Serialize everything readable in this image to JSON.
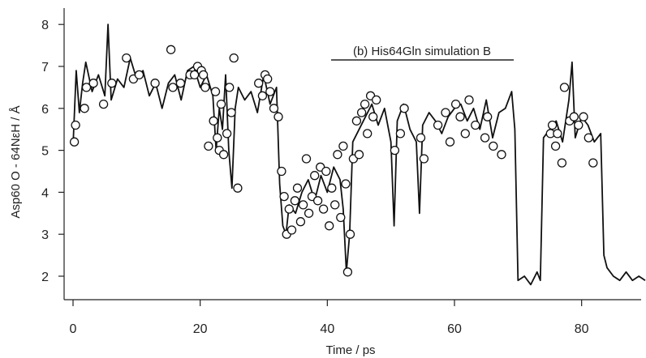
{
  "chart_data": {
    "type": "line",
    "title": "",
    "annotation": "(b) His64Gln simulation B",
    "xlabel": "Time / ps",
    "ylabel": "Asp60 O - 64NεH / Å",
    "xlim": [
      0,
      90
    ],
    "ylim": [
      1.6,
      8.25
    ],
    "xticks": [
      0,
      20,
      40,
      60,
      80
    ],
    "yticks": [
      2,
      3,
      4,
      5,
      6,
      7,
      8
    ],
    "grid": false,
    "legend": "none",
    "series": [
      {
        "style": "line",
        "x": [
          0,
          0.5,
          1,
          1.5,
          2,
          3,
          4,
          5,
          5.5,
          6,
          7,
          8,
          9,
          10,
          11,
          12,
          13,
          14,
          15,
          16,
          17,
          18,
          19,
          20,
          21,
          22,
          22.5,
          23,
          23.5,
          24,
          24.5,
          25,
          25.5,
          26,
          27,
          28,
          29,
          30,
          31,
          32,
          32.5,
          33,
          33.5,
          34,
          35,
          36,
          37,
          38,
          39,
          40,
          41,
          42,
          42.5,
          43,
          43.5,
          44,
          45,
          46,
          47,
          48,
          49,
          50,
          50.5,
          51,
          52,
          53,
          54,
          54.5,
          55,
          56,
          57,
          58,
          59,
          60,
          61,
          62,
          63,
          64,
          65,
          66,
          67,
          68,
          69,
          69.5,
          70,
          71,
          72,
          73,
          73.5,
          74,
          75,
          76,
          77,
          78,
          78.5,
          79,
          80,
          81,
          82,
          83,
          83.5,
          84,
          85,
          86,
          87,
          88,
          89,
          90
        ],
        "y": [
          5.1,
          6.9,
          5.9,
          6.6,
          7.1,
          6.4,
          6.8,
          6.3,
          8.0,
          6.2,
          6.7,
          6.5,
          7.2,
          6.7,
          6.9,
          6.3,
          6.6,
          6.0,
          6.6,
          6.8,
          6.2,
          6.9,
          7.0,
          6.5,
          6.8,
          6.3,
          5.0,
          6.0,
          5.5,
          6.8,
          5.0,
          4.1,
          6.0,
          6.5,
          6.2,
          6.4,
          5.9,
          6.8,
          6.1,
          6.5,
          4.2,
          3.2,
          3.0,
          3.7,
          3.5,
          4.0,
          4.3,
          3.8,
          4.4,
          4.0,
          4.6,
          4.3,
          3.6,
          2.1,
          3.0,
          5.2,
          5.5,
          5.8,
          6.1,
          5.6,
          6.0,
          5.2,
          3.2,
          5.7,
          6.1,
          5.5,
          5.2,
          3.5,
          5.6,
          5.9,
          5.7,
          5.4,
          5.8,
          6.0,
          6.1,
          5.7,
          6.0,
          5.5,
          6.2,
          5.3,
          5.9,
          6.0,
          6.4,
          5.5,
          1.9,
          2.0,
          1.8,
          2.1,
          1.9,
          5.3,
          5.5,
          5.7,
          5.2,
          6.2,
          7.1,
          5.3,
          5.8,
          5.6,
          5.2,
          5.4,
          2.5,
          2.2,
          2.0,
          1.9,
          2.1,
          1.9,
          2.0,
          1.9
        ]
      },
      {
        "style": "markers",
        "x": [
          0.2,
          0.4,
          1.8,
          2.1,
          3.2,
          4.8,
          6.1,
          8.4,
          9.5,
          10.4,
          12.9,
          15.4,
          15.7,
          16.9,
          18.4,
          19.1,
          19.6,
          20.2,
          20.5,
          20.8,
          21.3,
          22.1,
          22.4,
          22.7,
          23.0,
          23.3,
          23.7,
          24.2,
          24.6,
          24.9,
          25.3,
          25.9,
          29.2,
          29.8,
          30.2,
          30.6,
          31.0,
          31.6,
          32.3,
          32.8,
          33.2,
          33.6,
          34.0,
          34.4,
          34.9,
          35.3,
          35.8,
          36.2,
          36.7,
          37.1,
          37.6,
          38.0,
          38.5,
          38.9,
          39.4,
          39.8,
          40.3,
          40.7,
          41.2,
          41.6,
          42.1,
          42.5,
          42.9,
          43.2,
          43.6,
          44.1,
          44.6,
          45.0,
          45.4,
          45.9,
          46.3,
          46.8,
          47.2,
          47.7,
          50.6,
          51.5,
          52.1,
          54.7,
          55.2,
          57.4,
          58.6,
          59.3,
          60.2,
          60.9,
          61.7,
          62.3,
          63.3,
          64.8,
          65.2,
          66.1,
          67.4,
          75.1,
          75.4,
          75.9,
          76.2,
          76.9,
          77.3,
          78.1,
          78.8,
          79.5,
          80.3,
          81.1,
          81.8
        ],
        "y": [
          5.2,
          5.6,
          6.0,
          6.5,
          6.6,
          6.1,
          6.6,
          7.2,
          6.7,
          6.8,
          6.6,
          7.4,
          6.5,
          6.6,
          6.8,
          6.8,
          7.0,
          6.9,
          6.8,
          6.5,
          5.1,
          5.7,
          6.4,
          5.3,
          5.0,
          6.1,
          4.9,
          5.4,
          6.5,
          5.9,
          7.2,
          4.1,
          6.6,
          6.3,
          6.8,
          6.7,
          6.4,
          6.0,
          5.8,
          4.5,
          3.9,
          3.0,
          3.6,
          3.1,
          3.8,
          4.1,
          3.3,
          3.7,
          4.8,
          3.5,
          3.9,
          4.4,
          3.8,
          4.6,
          3.6,
          4.5,
          3.2,
          4.1,
          3.7,
          4.9,
          3.4,
          5.1,
          4.2,
          2.1,
          3.0,
          4.8,
          5.7,
          4.9,
          5.9,
          6.1,
          5.4,
          6.3,
          5.8,
          6.2,
          5.0,
          5.4,
          6.0,
          5.3,
          4.8,
          5.6,
          5.9,
          5.2,
          6.1,
          5.8,
          5.4,
          6.2,
          5.6,
          5.3,
          5.8,
          5.1,
          4.9,
          5.4,
          5.6,
          5.1,
          5.4,
          4.7,
          6.5,
          5.7,
          5.8,
          5.6,
          5.8,
          5.3,
          4.7
        ]
      }
    ]
  },
  "colors": {
    "line": "#111111",
    "marker_fill": "#ffffff",
    "marker_stroke": "#111111"
  }
}
